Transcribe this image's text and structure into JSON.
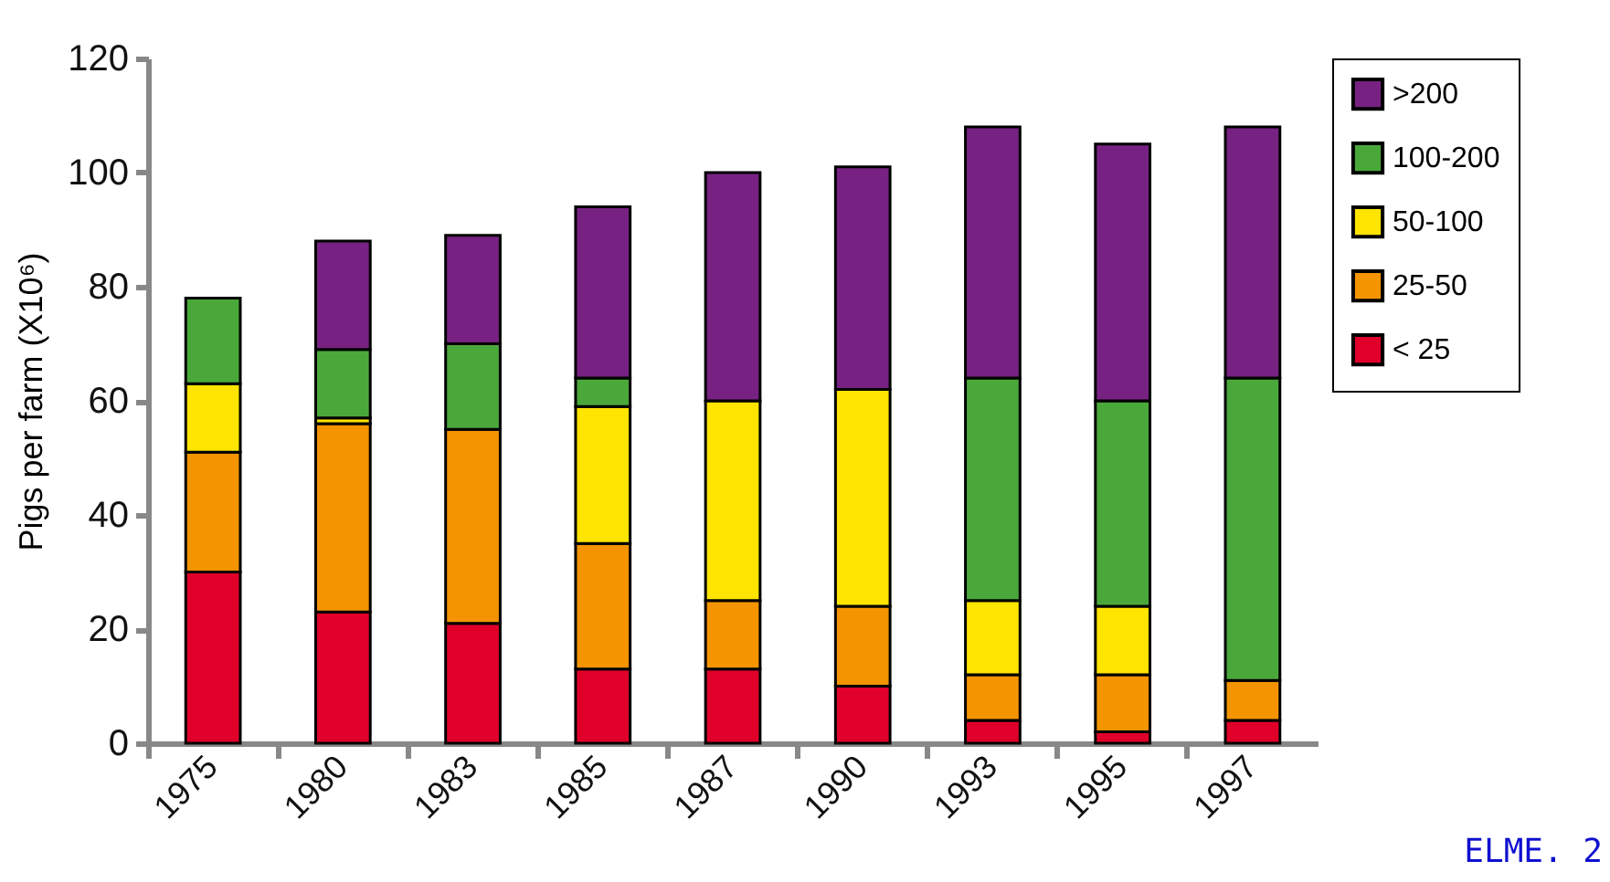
{
  "chart_data": {
    "type": "bar",
    "stacked": true,
    "ylabel": "Pigs per farm (X10⁶)",
    "categories": [
      "1975",
      "1980",
      "1983",
      "1985",
      "1987",
      "1990",
      "1993",
      "1995",
      "1997"
    ],
    "series": [
      {
        "name": "< 25",
        "color": "#e0002a",
        "values": [
          30,
          23,
          21,
          13,
          13,
          10,
          4,
          2,
          4
        ]
      },
      {
        "name": "25-50",
        "color": "#f39400",
        "values": [
          21,
          33,
          34,
          22,
          12,
          14,
          8,
          10,
          7
        ]
      },
      {
        "name": "50-100",
        "color": "#ffe400",
        "values": [
          12,
          1,
          null,
          24,
          35,
          38,
          13,
          12,
          null
        ]
      },
      {
        "name": "100-200",
        "color": "#4aa83a",
        "values": [
          15,
          12,
          15,
          5,
          null,
          null,
          39,
          36,
          53
        ]
      },
      {
        "name": ">200",
        "color": "#772282",
        "values": [
          null,
          19,
          19,
          30,
          40,
          39,
          44,
          45,
          44
        ]
      }
    ],
    "ylim": [
      0,
      120
    ],
    "yticks": [
      0,
      20,
      40,
      60,
      80,
      100,
      120
    ],
    "grid": false,
    "legend": "right",
    "annotations": [
      "ELME. 2"
    ]
  }
}
